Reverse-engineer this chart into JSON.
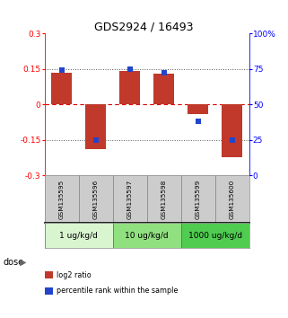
{
  "title": "GDS2924 / 16493",
  "samples": [
    "GSM135595",
    "GSM135596",
    "GSM135597",
    "GSM135598",
    "GSM135599",
    "GSM135600"
  ],
  "log2_ratio": [
    0.132,
    -0.19,
    0.142,
    0.13,
    -0.04,
    -0.222
  ],
  "percentile_rank": [
    74,
    25,
    75,
    72,
    38,
    25
  ],
  "ylim_left": [
    -0.3,
    0.3
  ],
  "ylim_right": [
    0,
    100
  ],
  "yticks_left": [
    -0.3,
    -0.15,
    0,
    0.15,
    0.3
  ],
  "yticks_right": [
    0,
    25,
    50,
    75,
    100
  ],
  "ytick_labels_right": [
    "0",
    "25",
    "50",
    "75",
    "100%"
  ],
  "bar_color": "#c0392b",
  "dot_color": "#2244cc",
  "dose_groups": [
    {
      "label": "1 ug/kg/d",
      "samples": [
        0,
        1
      ],
      "color": "#d8f5d0"
    },
    {
      "label": "10 ug/kg/d",
      "samples": [
        2,
        3
      ],
      "color": "#90e080"
    },
    {
      "label": "1000 ug/kg/d",
      "samples": [
        4,
        5
      ],
      "color": "#50cc50"
    }
  ],
  "sample_box_color": "#cccccc",
  "legend_items": [
    {
      "label": "log2 ratio",
      "color": "#c0392b"
    },
    {
      "label": "percentile rank within the sample",
      "color": "#2244cc"
    }
  ],
  "hline_color_zero": "#dd0000",
  "hline_color_grid": "#555555",
  "bar_width": 0.6,
  "dot_size": 4.5
}
